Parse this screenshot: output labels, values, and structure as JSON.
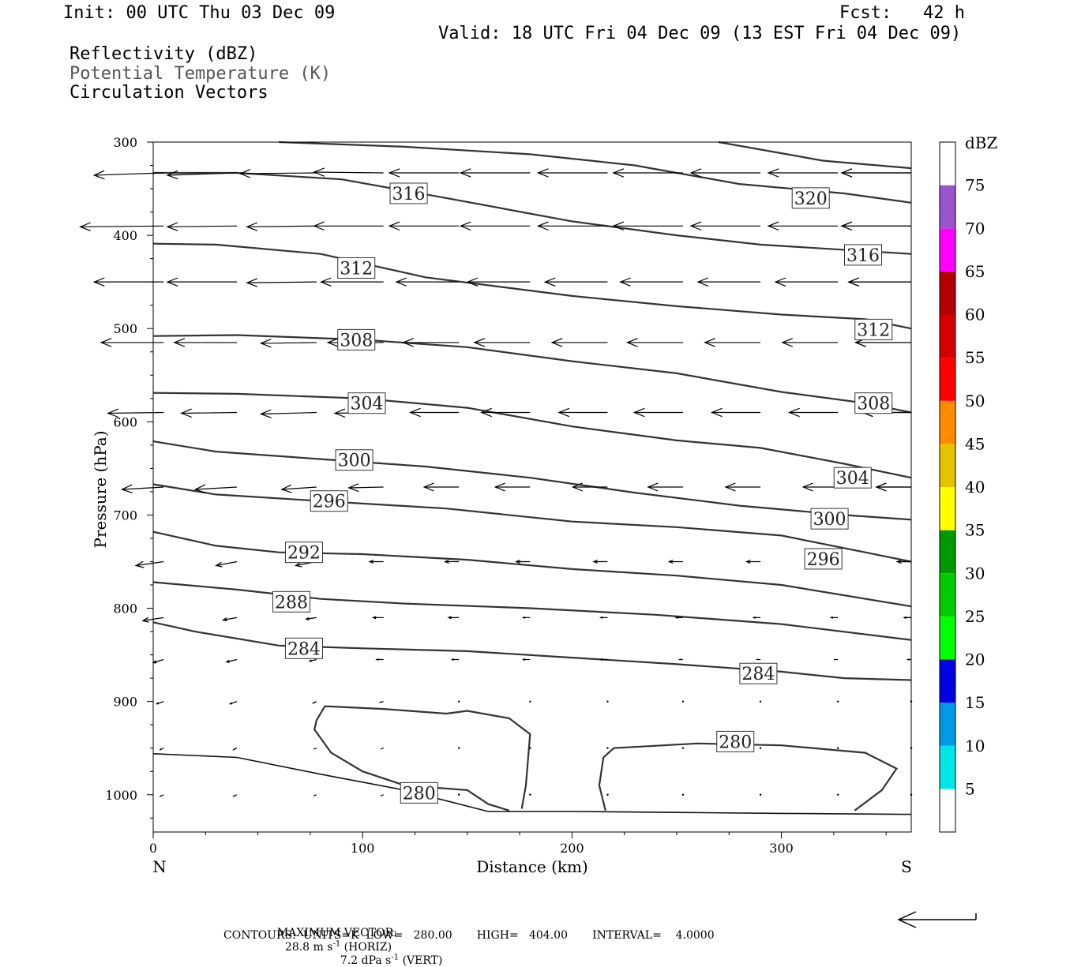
{
  "header": {
    "init": "Init: 00 UTC Thu 03 Dec 09",
    "fcst": "Fcst:   42 h",
    "valid": "Valid: 18 UTC Fri 04 Dec 09 (13 EST Fri 04 Dec 09)",
    "field1": "Reflectivity (dBZ)",
    "field2": "Potential Temperature (K)",
    "field3": "Circulation Vectors"
  },
  "footer": {
    "max_vector_label": "MAXIMUM VECTOR:",
    "max_horiz": "28.8 m s",
    "max_horiz_exp": "-1",
    "max_horiz_unit": "(HORIZ)",
    "max_vert": "7.2 dPa s",
    "max_vert_exp": "-1",
    "max_vert_unit": "(VERT)",
    "contours": "CONTOURS:  UNITS=K  LOW=   280.00       HIGH=   404.00       INTERVAL=    4.0000"
  },
  "chart_data": {
    "type": "contour",
    "xlabel": "Distance (km)",
    "ylabel": "Pressure (hPa)",
    "xlim": [
      0,
      362
    ],
    "ylim": [
      300,
      1040
    ],
    "x_ticks": [
      0,
      100,
      200,
      300
    ],
    "y_ticks": [
      300,
      400,
      500,
      600,
      700,
      800,
      900,
      1000
    ],
    "x_end_labels": {
      "left": "N",
      "right": "S"
    },
    "colorbar": {
      "title": "dBZ",
      "levels": [
        5,
        10,
        15,
        20,
        25,
        30,
        35,
        40,
        45,
        50,
        55,
        60,
        65,
        70,
        75
      ],
      "colors": [
        "#ffffff",
        "#00e5e5",
        "#0099e5",
        "#0000e5",
        "#00ff00",
        "#00cc00",
        "#009900",
        "#ffff00",
        "#e6c300",
        "#ff8c00",
        "#ff0000",
        "#d40000",
        "#b30000",
        "#ff00ff",
        "#9955cc",
        "#ffffff"
      ]
    },
    "isentropes": [
      {
        "label": "284",
        "points": [
          [
            0,
            815
          ],
          [
            20,
            825
          ],
          [
            60,
            840
          ],
          [
            100,
            843
          ],
          [
            150,
            846
          ],
          [
            200,
            853
          ],
          [
            250,
            860
          ],
          [
            300,
            868
          ],
          [
            330,
            875
          ],
          [
            362,
            877
          ]
        ],
        "label_pos": [
          [
            72,
            843
          ],
          [
            289,
            870
          ]
        ]
      },
      {
        "label": "288",
        "points": [
          [
            0,
            772
          ],
          [
            40,
            780
          ],
          [
            80,
            790
          ],
          [
            120,
            795
          ],
          [
            180,
            800
          ],
          [
            240,
            807
          ],
          [
            300,
            817
          ],
          [
            362,
            834
          ]
        ],
        "label_pos": [
          [
            66,
            793
          ]
        ]
      },
      {
        "label": "292",
        "points": [
          [
            0,
            718
          ],
          [
            30,
            733
          ],
          [
            60,
            740
          ],
          [
            100,
            742
          ],
          [
            150,
            748
          ],
          [
            200,
            758
          ],
          [
            250,
            765
          ],
          [
            300,
            775
          ],
          [
            362,
            798
          ]
        ],
        "label_pos": [
          [
            72,
            740
          ]
        ]
      },
      {
        "label": "296",
        "points": [
          [
            0,
            667
          ],
          [
            30,
            678
          ],
          [
            80,
            685
          ],
          [
            140,
            693
          ],
          [
            200,
            707
          ],
          [
            250,
            713
          ],
          [
            300,
            722
          ],
          [
            340,
            740
          ],
          [
            362,
            750
          ]
        ],
        "label_pos": [
          [
            84,
            685
          ],
          [
            320,
            747
          ]
        ]
      },
      {
        "label": "300",
        "points": [
          [
            0,
            621
          ],
          [
            30,
            632
          ],
          [
            80,
            640
          ],
          [
            130,
            648
          ],
          [
            180,
            660
          ],
          [
            230,
            676
          ],
          [
            280,
            690
          ],
          [
            330,
            700
          ],
          [
            362,
            705
          ]
        ],
        "label_pos": [
          [
            96,
            641
          ],
          [
            323,
            704
          ]
        ]
      },
      {
        "label": "304",
        "points": [
          [
            0,
            569
          ],
          [
            40,
            570
          ],
          [
            100,
            575
          ],
          [
            150,
            585
          ],
          [
            200,
            605
          ],
          [
            250,
            620
          ],
          [
            290,
            628
          ],
          [
            330,
            645
          ],
          [
            362,
            660
          ]
        ],
        "label_pos": [
          [
            102,
            580
          ],
          [
            334,
            660
          ]
        ]
      },
      {
        "label": "308",
        "points": [
          [
            0,
            508
          ],
          [
            40,
            507
          ],
          [
            100,
            512
          ],
          [
            150,
            520
          ],
          [
            200,
            535
          ],
          [
            250,
            548
          ],
          [
            300,
            568
          ],
          [
            340,
            580
          ],
          [
            362,
            590
          ]
        ],
        "label_pos": [
          [
            97,
            512
          ],
          [
            344,
            580
          ]
        ]
      },
      {
        "label": "312",
        "points": [
          [
            0,
            409
          ],
          [
            30,
            410
          ],
          [
            80,
            420
          ],
          [
            130,
            445
          ],
          [
            200,
            465
          ],
          [
            250,
            476
          ],
          [
            300,
            485
          ],
          [
            340,
            490
          ],
          [
            362,
            500
          ]
        ],
        "label_pos": [
          [
            97,
            435
          ],
          [
            344,
            501
          ]
        ]
      },
      {
        "label": "316",
        "points": [
          [
            0,
            333
          ],
          [
            40,
            333
          ],
          [
            90,
            340
          ],
          [
            140,
            360
          ],
          [
            200,
            385
          ],
          [
            250,
            400
          ],
          [
            290,
            410
          ],
          [
            362,
            420
          ]
        ],
        "label_pos": [
          [
            122,
            355
          ],
          [
            339,
            421
          ]
        ]
      },
      {
        "label": "320",
        "points": [
          [
            60,
            300
          ],
          [
            120,
            305
          ],
          [
            180,
            313
          ],
          [
            230,
            325
          ],
          [
            280,
            345
          ],
          [
            330,
            355
          ],
          [
            362,
            365
          ]
        ],
        "label_pos": [
          [
            314,
            360
          ]
        ]
      },
      {
        "label": "",
        "points": [
          [
            270,
            300
          ],
          [
            320,
            320
          ],
          [
            362,
            328
          ]
        ],
        "label_pos": []
      }
    ],
    "closed_contours": [
      {
        "label": "280",
        "points": [
          [
            78,
            920
          ],
          [
            82,
            905
          ],
          [
            110,
            908
          ],
          [
            140,
            913
          ],
          [
            150,
            910
          ],
          [
            170,
            918
          ],
          [
            180,
            935
          ],
          [
            178,
            990
          ],
          [
            176,
            1015
          ]
        ],
        "label_pos": [
          [
            127,
            998
          ]
        ]
      },
      {
        "label": "280",
        "points": [
          [
            170,
            1017
          ],
          [
            160,
            1010
          ],
          [
            150,
            995
          ],
          [
            120,
            990
          ],
          [
            100,
            975
          ],
          [
            85,
            955
          ],
          [
            77,
            930
          ],
          [
            78,
            920
          ]
        ],
        "label_pos": []
      },
      {
        "label": "280",
        "points": [
          [
            216,
            1017
          ],
          [
            213,
            990
          ],
          [
            215,
            960
          ],
          [
            220,
            950
          ],
          [
            260,
            945
          ],
          [
            300,
            947
          ],
          [
            340,
            955
          ],
          [
            355,
            972
          ],
          [
            348,
            995
          ],
          [
            335,
            1017
          ]
        ],
        "label_pos": [
          [
            278,
            943
          ]
        ]
      }
    ],
    "terrain_line": [
      [
        0,
        956
      ],
      [
        40,
        960
      ],
      [
        80,
        978
      ],
      [
        120,
        995
      ],
      [
        160,
        1018
      ],
      [
        200,
        1018
      ],
      [
        250,
        1019
      ],
      [
        300,
        1020
      ],
      [
        362,
        1021
      ]
    ],
    "vector_rows": [
      {
        "p": 333,
        "u": [
          -1.0,
          -1.0,
          -1.1,
          -1.0,
          -1.0,
          -1.0,
          -1.0,
          -1.0,
          -1.0,
          -1.0,
          -1.0,
          -1.0
        ],
        "w": [
          0.3,
          0.3,
          0.1,
          -0.1,
          0,
          0,
          0,
          0,
          0,
          0,
          0,
          0
        ]
      },
      {
        "p": 390,
        "u": [
          -1.2,
          -1.0,
          -1.0,
          -1.0,
          -1.0,
          -1.0,
          -1.0,
          -1.0,
          -1.0,
          -1.0,
          -1.0,
          -1.0
        ],
        "w": [
          0.1,
          0.1,
          0.1,
          0,
          0,
          0,
          0,
          0,
          0,
          0,
          0,
          0
        ]
      },
      {
        "p": 450,
        "u": [
          -1.0,
          -1.0,
          -1.0,
          -0.9,
          -0.9,
          -0.9,
          -0.9,
          -0.9,
          -0.9,
          -0.9,
          -0.9,
          -0.9
        ],
        "w": [
          0,
          0,
          0.1,
          0,
          0,
          0,
          0,
          0,
          0,
          0,
          0,
          0
        ]
      },
      {
        "p": 515,
        "u": [
          -0.9,
          -0.9,
          -0.8,
          -0.8,
          -0.8,
          -0.8,
          -0.8,
          -0.8,
          -0.8,
          -0.8,
          -0.8,
          -0.8
        ],
        "w": [
          0,
          0,
          0.1,
          0,
          0,
          0,
          0,
          0,
          0,
          0,
          0,
          0
        ]
      },
      {
        "p": 590,
        "u": [
          -0.8,
          -0.8,
          -0.8,
          -0.7,
          -0.7,
          -0.7,
          -0.7,
          -0.7,
          -0.7,
          -0.7,
          -0.7,
          -0.7
        ],
        "w": [
          0.1,
          0.1,
          0.2,
          0.1,
          0,
          0,
          0,
          0,
          0,
          0,
          0,
          0
        ]
      },
      {
        "p": 670,
        "u": [
          -0.6,
          -0.6,
          -0.5,
          -0.5,
          -0.5,
          -0.5,
          -0.5,
          -0.5,
          -0.5,
          -0.5,
          -0.5,
          -0.5
        ],
        "w": [
          0.3,
          0.3,
          0.3,
          0.1,
          0,
          0,
          0,
          0,
          0,
          0,
          0,
          0
        ]
      },
      {
        "p": 750,
        "u": [
          -0.4,
          -0.3,
          -0.3,
          -0.2,
          -0.2,
          -0.2,
          -0.2,
          -0.2,
          -0.2,
          -0.2,
          -0.2,
          -0.2
        ],
        "w": [
          0.5,
          0.5,
          0.5,
          0,
          0,
          0,
          0,
          0,
          0,
          0,
          0,
          0
        ]
      },
      {
        "p": 810,
        "u": [
          -0.3,
          -0.2,
          -0.15,
          -0.15,
          -0.15,
          -0.1,
          -0.1,
          -0.1,
          -0.1,
          -0.1,
          -0.1,
          -0.1
        ],
        "w": [
          0.4,
          0.3,
          0.2,
          0,
          0,
          0,
          0,
          0,
          0,
          0,
          0,
          0
        ]
      },
      {
        "p": 855,
        "u": [
          -0.15,
          -0.15,
          -0.1,
          -0.1,
          -0.1,
          -0.1,
          -0.1,
          -0.05,
          -0.05,
          -0.05,
          -0.05,
          -0.05
        ],
        "w": [
          0.4,
          0.3,
          0.2,
          0,
          0,
          0,
          0,
          0,
          0,
          0,
          0,
          0
        ]
      },
      {
        "p": 900,
        "u": [
          -0.1,
          -0.1,
          -0.05,
          -0.05,
          0,
          0,
          0,
          0,
          0,
          0,
          0,
          0
        ],
        "w": [
          0.3,
          0.3,
          0.2,
          0.1,
          0,
          0,
          0,
          0,
          0,
          0,
          0,
          0
        ]
      },
      {
        "p": 950,
        "u": [
          -0.05,
          -0.05,
          -0.03,
          -0.03,
          0,
          0,
          0,
          0,
          0,
          0,
          0,
          0
        ],
        "w": [
          0.2,
          0.2,
          0.1,
          0.1,
          0,
          0,
          0,
          0,
          0,
          0,
          0,
          0
        ]
      },
      {
        "p": 1000,
        "u": [
          -0.05,
          -0.05,
          -0.03,
          -0.03,
          0,
          0,
          0,
          0,
          0,
          0,
          0,
          0
        ],
        "w": [
          0.2,
          0.2,
          0.1,
          0.1,
          0,
          0,
          0,
          0,
          0,
          0,
          0,
          0
        ]
      }
    ],
    "vector_x": [
      5,
      40,
      78,
      110,
      146,
      180,
      217,
      253,
      290,
      327,
      362,
      362
    ]
  }
}
